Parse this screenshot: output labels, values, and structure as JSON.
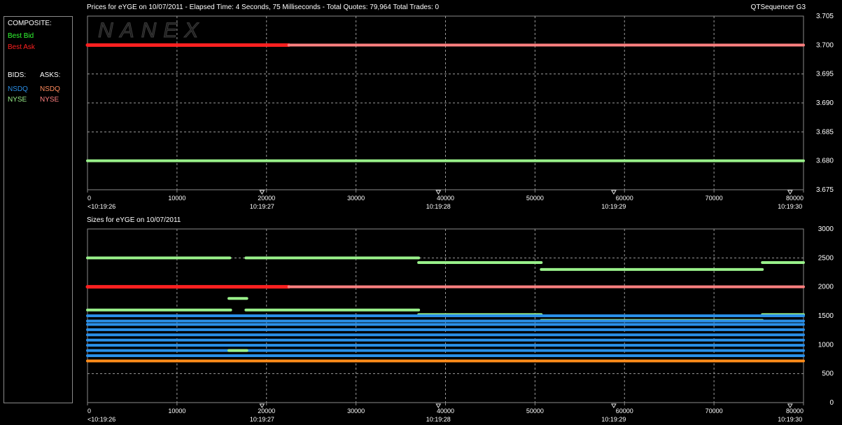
{
  "header": {
    "prices_title": "Prices for  eYGE  on  10/07/2011   -  Elapsed Time: 4 Seconds, 75 Milliseconds   -  Total Quotes: 79,964   Total Trades: 0",
    "sizes_title": "Sizes for  eYGE  on  10/07/2011",
    "app_name": "QTSequencer G3",
    "watermark": "NANEX"
  },
  "legend": {
    "composite_label": "COMPOSITE:",
    "best_bid": "Best Bid",
    "best_ask": "Best Ask",
    "bids_label": "BIDS:",
    "asks_label": "ASKS:",
    "bid_nsdq": "NSDQ",
    "bid_nyse": "NYSE",
    "ask_nsdq": "NSDQ",
    "ask_nyse": "NYSE"
  },
  "colors": {
    "best_bid": "#33ff33",
    "best_ask": "#ff2020",
    "nsdq_bid": "#2a8fe8",
    "nyse_bid": "#99f08a",
    "nsdq_ask": "#ff8a5c",
    "nyse_ask": "#ff8080",
    "orange_line": "#ff8c1a",
    "grid": "#9a9a9a"
  },
  "chart_data": [
    {
      "type": "line",
      "name": "prices",
      "xlim": [
        0,
        80000
      ],
      "ylim": [
        3.675,
        3.705
      ],
      "grid": true,
      "x_ticks": [
        "0",
        "10000",
        "20000",
        "30000",
        "40000",
        "50000",
        "60000",
        "70000",
        "80000"
      ],
      "x_tick_values": [
        0,
        10000,
        20000,
        30000,
        40000,
        50000,
        60000,
        70000,
        80000
      ],
      "time_labels": [
        {
          "x": 0,
          "label": "<10:19:26"
        },
        {
          "x": 19500,
          "label": "10:19:27"
        },
        {
          "x": 39200,
          "label": "10:19:28"
        },
        {
          "x": 58800,
          "label": "10:19:29"
        },
        {
          "x": 78500,
          "label": "10:19:30"
        }
      ],
      "y_ticks": [
        "3.675",
        "3.680",
        "3.685",
        "3.690",
        "3.695",
        "3.700",
        "3.705"
      ],
      "y_tick_values": [
        3.675,
        3.68,
        3.685,
        3.69,
        3.695,
        3.7,
        3.705
      ],
      "series": [
        {
          "key": "best_ask_thick",
          "segments": [
            [
              0,
              22500,
              3.7
            ]
          ]
        },
        {
          "key": "nyse_ask",
          "segments": [
            [
              22500,
              80000,
              3.7
            ]
          ]
        },
        {
          "key": "nyse_bid",
          "segments": [
            [
              0,
              80000,
              3.68
            ]
          ]
        }
      ]
    },
    {
      "type": "line",
      "name": "sizes",
      "xlim": [
        0,
        80000
      ],
      "ylim": [
        0,
        3000
      ],
      "grid": true,
      "x_ticks": [
        "0",
        "10000",
        "20000",
        "30000",
        "40000",
        "50000",
        "60000",
        "70000",
        "80000"
      ],
      "x_tick_values": [
        0,
        10000,
        20000,
        30000,
        40000,
        50000,
        60000,
        70000,
        80000
      ],
      "time_labels": [
        {
          "x": 0,
          "label": "<10:19:26"
        },
        {
          "x": 19500,
          "label": "10:19:27"
        },
        {
          "x": 39200,
          "label": "10:19:28"
        },
        {
          "x": 58800,
          "label": "10:19:29"
        },
        {
          "x": 78500,
          "label": "10:19:30"
        }
      ],
      "y_ticks": [
        "0",
        "500",
        "1000",
        "1500",
        "2000",
        "2500",
        "3000"
      ],
      "y_tick_values": [
        0,
        500,
        1000,
        1500,
        2000,
        2500,
        3000
      ],
      "series": [
        {
          "key": "nyse_bid",
          "segments": [
            [
              0,
              15900,
              2500
            ],
            [
              17700,
              37000,
              2500
            ],
            [
              37000,
              50700,
              2420
            ],
            [
              50700,
              75400,
              2300
            ],
            [
              75400,
              80000,
              2420
            ]
          ]
        },
        {
          "key": "best_ask_thick",
          "segments": [
            [
              0,
              22500,
              2000
            ]
          ]
        },
        {
          "key": "nyse_ask",
          "segments": [
            [
              22500,
              80000,
              2000
            ]
          ]
        },
        {
          "key": "nyse_bid",
          "segments": [
            [
              15800,
              17800,
              1800
            ]
          ]
        },
        {
          "key": "nyse_bid",
          "segments": [
            [
              0,
              16000,
              1600
            ],
            [
              17700,
              37000,
              1600
            ]
          ]
        },
        {
          "key": "nyse_bid",
          "segments": [
            [
              37000,
              50700,
              1520
            ],
            [
              75400,
              80000,
              1520
            ]
          ]
        },
        {
          "key": "nyse_bid",
          "segments": [
            [
              50700,
              75400,
              1420
            ]
          ]
        },
        {
          "key": "nsdq_bid",
          "segments": [
            [
              0,
              80000,
              1500
            ]
          ]
        },
        {
          "key": "nsdq_bid",
          "segments": [
            [
              0,
              80000,
              1410
            ]
          ]
        },
        {
          "key": "nsdq_bid",
          "segments": [
            [
              0,
              80000,
              1350
            ]
          ]
        },
        {
          "key": "nsdq_bid",
          "segments": [
            [
              0,
              80000,
              1260
            ]
          ]
        },
        {
          "key": "nsdq_bid",
          "segments": [
            [
              0,
              80000,
              1170
            ]
          ]
        },
        {
          "key": "nsdq_bid",
          "segments": [
            [
              0,
              80000,
              1080
            ]
          ]
        },
        {
          "key": "nsdq_bid",
          "segments": [
            [
              0,
              80000,
              990
            ]
          ]
        },
        {
          "key": "nsdq_bid",
          "segments": [
            [
              0,
              80000,
              900
            ]
          ]
        },
        {
          "key": "nyse_bid",
          "segments": [
            [
              15800,
              17800,
              900
            ]
          ]
        },
        {
          "key": "nsdq_bid",
          "segments": [
            [
              0,
              80000,
              810
            ]
          ]
        },
        {
          "key": "orange_line",
          "segments": [
            [
              0,
              80000,
              720
            ]
          ]
        }
      ]
    }
  ]
}
